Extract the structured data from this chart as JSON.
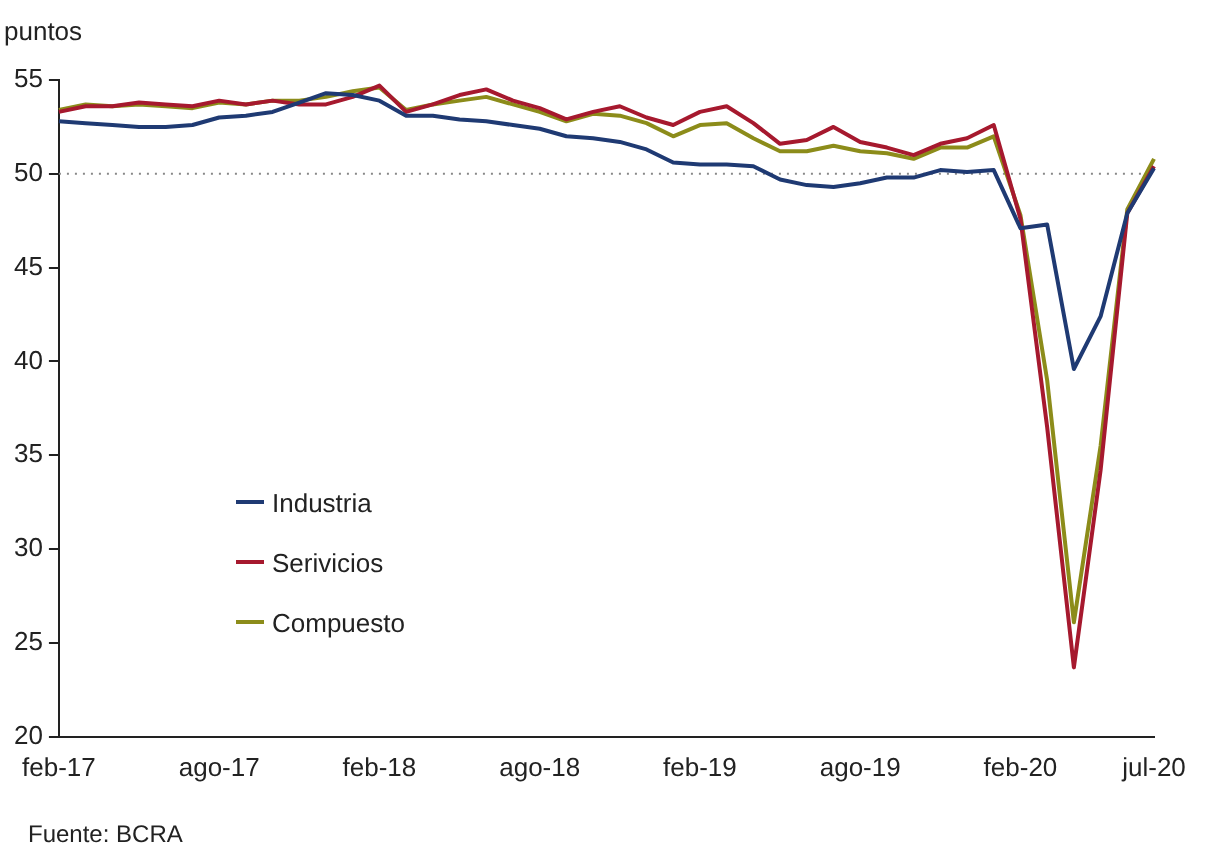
{
  "chart_data": {
    "type": "line",
    "ylabel": "puntos",
    "categories": [
      "feb-17",
      null,
      null,
      null,
      null,
      null,
      "ago-17",
      null,
      null,
      null,
      null,
      null,
      "feb-18",
      null,
      null,
      null,
      null,
      null,
      "ago-18",
      null,
      null,
      null,
      null,
      null,
      "feb-19",
      null,
      null,
      null,
      null,
      null,
      "ago-19",
      null,
      null,
      null,
      null,
      null,
      "feb-20",
      null,
      null,
      null,
      null,
      "jul-20"
    ],
    "series": [
      {
        "name": "Industria",
        "color": "#1f3a73",
        "values": [
          52.8,
          52.7,
          52.6,
          52.5,
          52.5,
          52.6,
          53.0,
          53.1,
          53.3,
          53.8,
          54.3,
          54.2,
          53.9,
          53.1,
          53.1,
          52.9,
          52.8,
          52.6,
          52.4,
          52.0,
          51.9,
          51.7,
          51.3,
          50.6,
          50.5,
          50.5,
          50.4,
          49.7,
          49.4,
          49.3,
          49.5,
          49.8,
          49.8,
          50.2,
          50.1,
          50.2,
          47.1,
          47.3,
          39.6,
          42.4,
          47.9,
          50.3
        ]
      },
      {
        "name": "Serivicios",
        "color": "#a6192e",
        "values": [
          53.3,
          53.6,
          53.6,
          53.8,
          53.7,
          53.6,
          53.9,
          53.7,
          53.9,
          53.7,
          53.7,
          54.1,
          54.7,
          53.3,
          53.7,
          54.2,
          54.5,
          53.9,
          53.5,
          52.9,
          53.3,
          53.6,
          53.0,
          52.6,
          53.3,
          53.6,
          52.7,
          51.6,
          51.8,
          52.5,
          51.7,
          51.4,
          51.0,
          51.6,
          51.9,
          52.6,
          47.6,
          36.5,
          23.7,
          34.2,
          47.9,
          50.4
        ]
      },
      {
        "name": "Compuesto",
        "color": "#8c8c1a",
        "values": [
          53.4,
          53.7,
          53.6,
          53.7,
          53.6,
          53.5,
          53.8,
          53.7,
          53.9,
          53.9,
          54.1,
          54.4,
          54.6,
          53.4,
          53.7,
          53.9,
          54.1,
          53.7,
          53.3,
          52.8,
          53.2,
          53.1,
          52.7,
          52.0,
          52.6,
          52.7,
          51.9,
          51.2,
          51.2,
          51.5,
          51.2,
          51.1,
          50.8,
          51.4,
          51.4,
          52.0,
          47.8,
          39.0,
          26.1,
          35.5,
          48.1,
          50.8
        ]
      }
    ],
    "ylim": [
      20,
      55
    ],
    "yticks": [
      20,
      25,
      30,
      35,
      40,
      45,
      50,
      55
    ],
    "grid": false,
    "legend": "left",
    "marker": "none",
    "line_style": "solid",
    "ref_lines": [
      {
        "axis": "y",
        "value": 50,
        "color": "#888888",
        "line_style": "dotted"
      }
    ],
    "annotations": [
      "Fuente: BCRA"
    ]
  }
}
